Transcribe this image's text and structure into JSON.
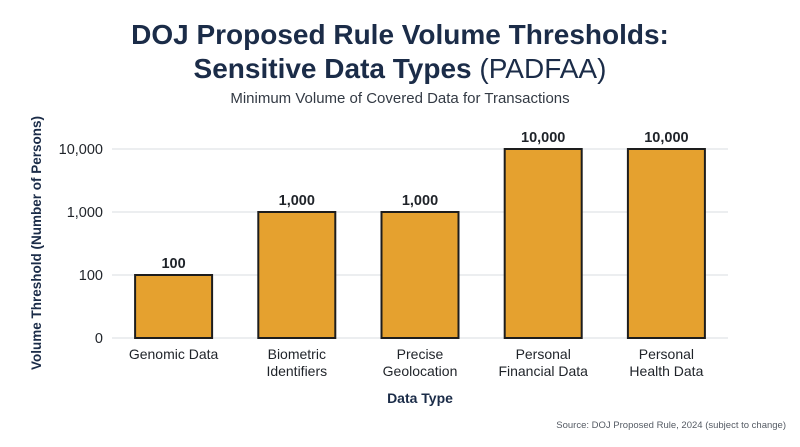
{
  "chart_data": {
    "type": "bar",
    "title_line1": "DOJ Proposed Rule Volume Thresholds:",
    "title_line2_bold": "Sensitive Data Types",
    "title_line2_normal": "(PADFAA)",
    "subtitle": "Minimum Volume of Covered Data for Transactions",
    "xlabel": "Data Type",
    "ylabel": "Volume Threshold (Number of Persons)",
    "yscale": "log",
    "yticks": [
      {
        "value": 0,
        "label": "0"
      },
      {
        "value": 100,
        "label": "100"
      },
      {
        "value": 1000,
        "label": "1,000"
      },
      {
        "value": 10000,
        "label": "10,000"
      }
    ],
    "categories": [
      [
        "Genomic Data"
      ],
      [
        "Biometric",
        "Identifiers"
      ],
      [
        "Precise",
        "Geolocation"
      ],
      [
        "Personal",
        "Financial Data"
      ],
      [
        "Personal",
        "Health Data"
      ]
    ],
    "values": [
      100,
      1000,
      1000,
      10000,
      10000
    ],
    "value_labels": [
      "100",
      "1,000",
      "1,000",
      "10,000",
      "10,000"
    ],
    "grid": true,
    "colors": {
      "bar": "#e5a12f",
      "bar_stroke": "#1d1d1d",
      "grid": "#d9dde2",
      "text": "#1b2c48"
    }
  },
  "source": "Source: DOJ Proposed Rule, 2024 (subject to change)"
}
